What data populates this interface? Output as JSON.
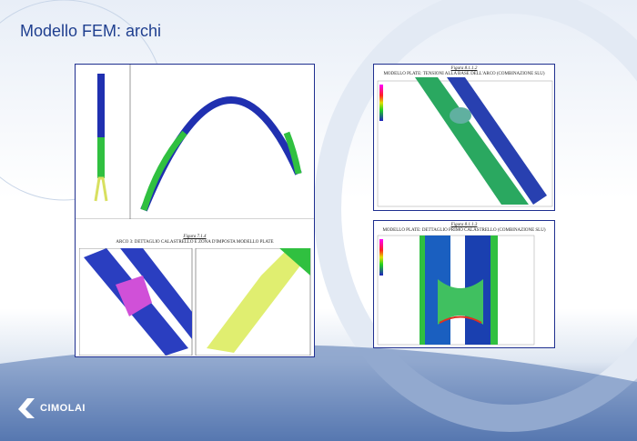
{
  "slide": {
    "title": "Modello FEM: archi"
  },
  "figures": [
    {
      "number": "Figura 7.1.4",
      "caption": "ARCO 3: DETTAGLIO CALASTRELLO E ZONA D'IMPOSTA MODELLO PLATE"
    },
    {
      "number": "Figura 8.1.1.2",
      "caption": "MODELLO PLATE: TENSIONI ALLA BASE DELL'ARCO (COMBINAZIONE SLU)"
    },
    {
      "number": "Figura 8.1.1.3",
      "caption": "MODELLO PLATE: DETTAGLIO PRIMO CALASTRELLO (COMBINAZIONE SLU)"
    }
  ],
  "logo": {
    "text": "CIMOLAI"
  },
  "colors": {
    "title": "#1f3f8f",
    "border": "#1f2f8f"
  }
}
